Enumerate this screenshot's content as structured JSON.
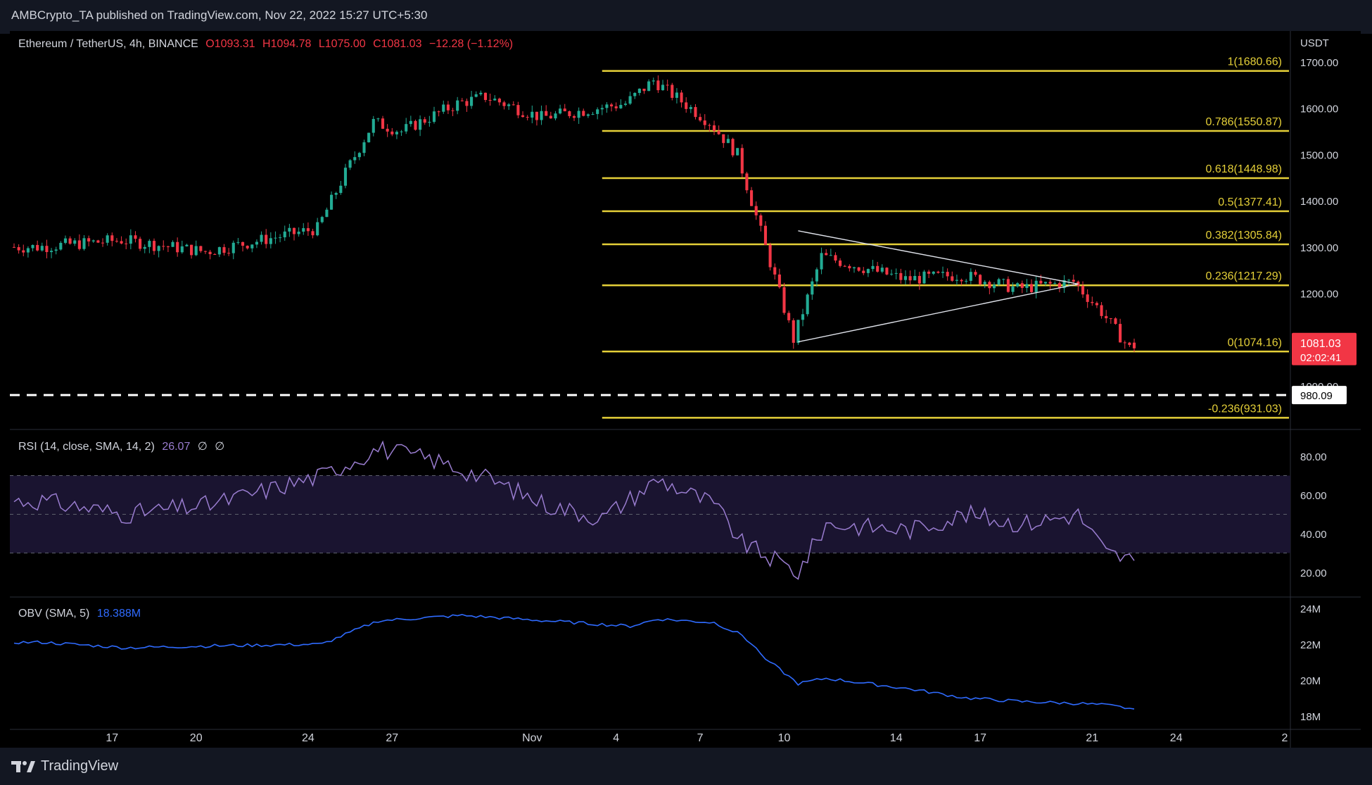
{
  "header": {
    "publisher": "AMBCrypto_TA published on TradingView.com, Nov 22, 2022 15:27 UTC+5:30"
  },
  "symbol": {
    "title": "Ethereum / TetherUS, 4h, BINANCE",
    "open_label": "O",
    "open": "1093.31",
    "high_label": "H",
    "high": "1094.78",
    "low_label": "L",
    "low": "1075.00",
    "close_label": "C",
    "close": "1081.03",
    "change": "−12.28 (−1.12%)"
  },
  "price_axis": {
    "currency": "USDT",
    "ticks": [
      "1700.00",
      "1600.00",
      "1500.00",
      "1400.00",
      "1300.00",
      "1200.00",
      "1100.00",
      "1000.00"
    ],
    "last_price": "1081.03",
    "countdown": "02:02:41",
    "support_label": "980.09",
    "colors": {
      "up": "#22ab94",
      "down": "#f23645",
      "fib": "#e5d038"
    }
  },
  "time_axis": {
    "ticks": [
      "17",
      "20",
      "24",
      "27",
      "Nov",
      "4",
      "7",
      "10",
      "14",
      "17",
      "21",
      "24",
      "2"
    ]
  },
  "fib_levels": [
    {
      "label": "1(1680.66)",
      "value": 1680.66
    },
    {
      "label": "0.786(1550.87)",
      "value": 1550.87
    },
    {
      "label": "0.618(1448.98)",
      "value": 1448.98
    },
    {
      "label": "0.5(1377.41)",
      "value": 1377.41
    },
    {
      "label": "0.382(1305.84)",
      "value": 1305.84
    },
    {
      "label": "0.236(1217.29)",
      "value": 1217.29
    },
    {
      "label": "0(1074.16)",
      "value": 1074.16
    },
    {
      "label": "-0.236(931.03)",
      "value": 931.03
    }
  ],
  "rsi": {
    "title": "RSI (14, close, SMA, 14, 2)",
    "value": "26.07",
    "extra1": "∅",
    "extra2": "∅",
    "ticks": [
      "80.00",
      "60.00",
      "40.00",
      "20.00"
    ]
  },
  "obv": {
    "title": "OBV (SMA, 5)",
    "value": "18.388M",
    "ticks": [
      "24M",
      "22M",
      "20M",
      "18M"
    ]
  },
  "footer": {
    "brand": "TradingView"
  },
  "chart_data": [
    {
      "type": "candlestick",
      "title": "Ethereum / TetherUS, 4h, BINANCE",
      "ylabel": "USDT",
      "ylim": [
        860,
        1760
      ],
      "x_range": [
        "Oct 13, 2022",
        "Nov 22, 2022"
      ],
      "candle_close_path_approx": [
        [
          "Oct 14",
          1300
        ],
        [
          "Oct 17",
          1315
        ],
        [
          "Oct 20",
          1290
        ],
        [
          "Oct 24",
          1340
        ],
        [
          "Oct 25",
          1460
        ],
        [
          "Oct 26",
          1570
        ],
        [
          "Oct 27",
          1550
        ],
        [
          "Oct 29",
          1610
        ],
        [
          "Oct 30",
          1625
        ],
        [
          "Nov 1",
          1580
        ],
        [
          "Nov 4",
          1610
        ],
        [
          "Nov 5",
          1660
        ],
        [
          "Nov 7",
          1570
        ],
        [
          "Nov 8",
          1500
        ],
        [
          "Nov 9",
          1300
        ],
        [
          "Nov 10",
          1100
        ],
        [
          "Nov 11",
          1280
        ],
        [
          "Nov 14",
          1230
        ],
        [
          "Nov 16",
          1240
        ],
        [
          "Nov 18",
          1210
        ],
        [
          "Nov 20",
          1225
        ],
        [
          "Nov 21",
          1160
        ],
        [
          "Nov 22",
          1081
        ]
      ],
      "last": {
        "open": 1093.31,
        "high": 1094.78,
        "low": 1075.0,
        "close": 1081.03
      },
      "fibonacci_high": 1680.66,
      "fibonacci_low": 1074.16,
      "support_dashed": 980.09,
      "triangle": {
        "upper": [
          [
            "Nov 10",
            1335
          ],
          [
            "Nov 20",
            1220
          ]
        ],
        "lower": [
          [
            "Nov 10",
            1095
          ],
          [
            "Nov 20",
            1220
          ]
        ]
      }
    },
    {
      "type": "line",
      "title": "RSI (14, close, SMA, 14, 2)",
      "ylim": [
        10,
        90
      ],
      "bands": [
        30,
        50,
        70
      ],
      "last": 26.07,
      "series_approx": [
        [
          "Oct 14",
          57
        ],
        [
          "Oct 17",
          50
        ],
        [
          "Oct 20",
          55
        ],
        [
          "Oct 24",
          70
        ],
        [
          "Oct 26",
          84
        ],
        [
          "Oct 28",
          78
        ],
        [
          "Oct 30",
          68
        ],
        [
          "Nov 1",
          55
        ],
        [
          "Nov 3",
          48
        ],
        [
          "Nov 5",
          68
        ],
        [
          "Nov 7",
          55
        ],
        [
          "Nov 8",
          35
        ],
        [
          "Nov 10",
          20
        ],
        [
          "Nov 11",
          45
        ],
        [
          "Nov 14",
          42
        ],
        [
          "Nov 16",
          50
        ],
        [
          "Nov 18",
          45
        ],
        [
          "Nov 20",
          50
        ],
        [
          "Nov 21",
          30
        ],
        [
          "Nov 22",
          26.07
        ]
      ]
    },
    {
      "type": "line",
      "title": "OBV (SMA, 5)",
      "ylim": [
        17.9,
        24.5
      ],
      "unit": "M",
      "last": 18.388,
      "series_approx": [
        [
          "Oct 14",
          22.1
        ],
        [
          "Oct 17",
          21.8
        ],
        [
          "Oct 20",
          21.9
        ],
        [
          "Oct 24",
          22.0
        ],
        [
          "Oct 26",
          23.3
        ],
        [
          "Oct 29",
          23.6
        ],
        [
          "Nov 1",
          23.3
        ],
        [
          "Nov 4",
          23.0
        ],
        [
          "Nov 5",
          23.4
        ],
        [
          "Nov 7",
          23.2
        ],
        [
          "Nov 8",
          22.5
        ],
        [
          "Nov 9",
          21.0
        ],
        [
          "Nov 10",
          19.8
        ],
        [
          "Nov 11",
          20.1
        ],
        [
          "Nov 14",
          19.5
        ],
        [
          "Nov 16",
          19.0
        ],
        [
          "Nov 18",
          18.8
        ],
        [
          "Nov 20",
          18.7
        ],
        [
          "Nov 21",
          18.6
        ],
        [
          "Nov 22",
          18.39
        ]
      ]
    }
  ]
}
